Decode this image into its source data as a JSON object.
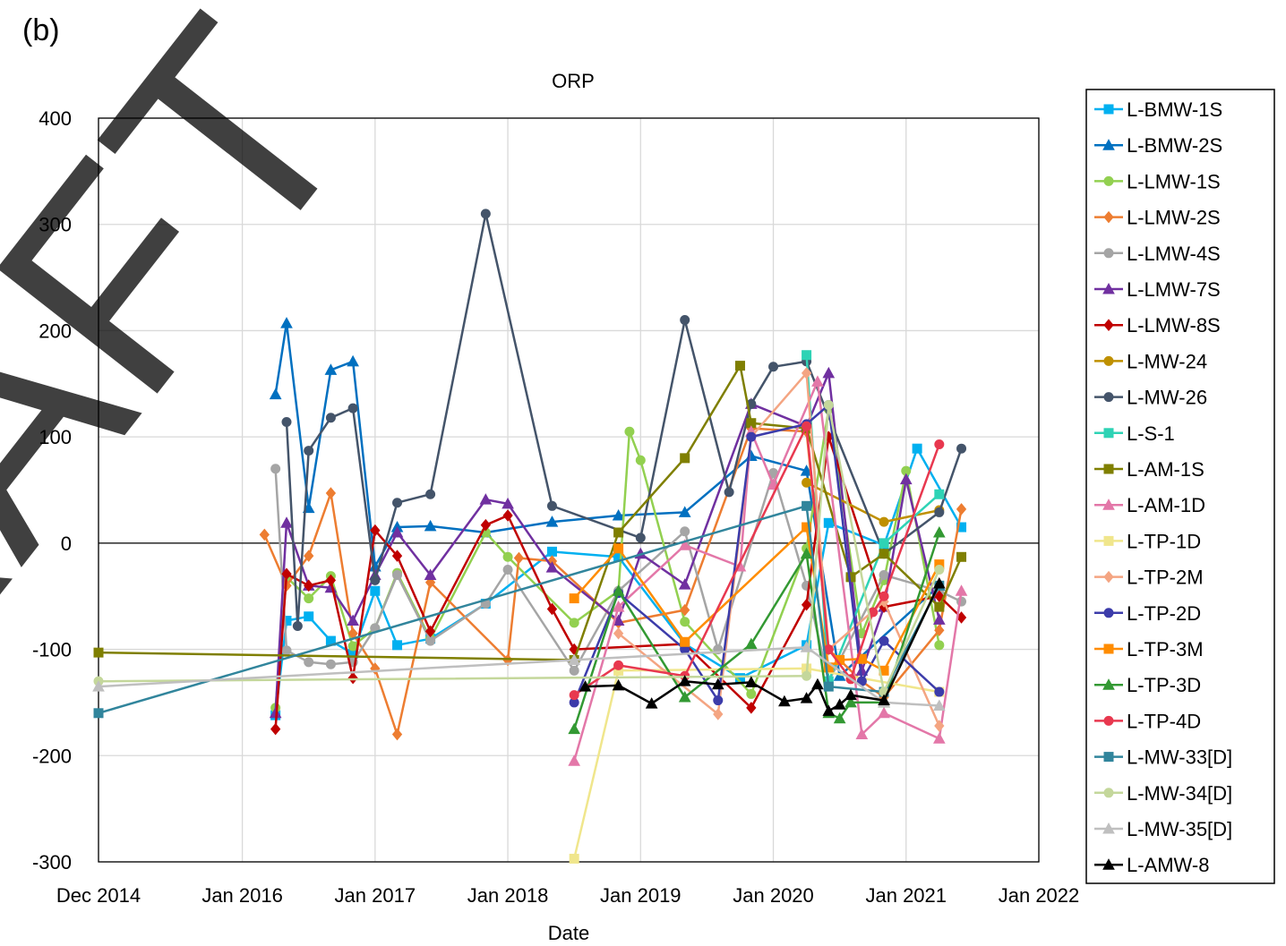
{
  "chart_data": {
    "type": "line",
    "panel_label": "(b)",
    "title": "ORP",
    "x_label": "Date",
    "watermark": "DRAFT",
    "xlim": [
      "2014-12",
      "2022-01"
    ],
    "xticks": [
      {
        "value": "2014-12",
        "label": "Dec 2014"
      },
      {
        "value": "2016-01",
        "label": "Jan 2016"
      },
      {
        "value": "2017-01",
        "label": "Jan 2017"
      },
      {
        "value": "2018-01",
        "label": "Jan 2018"
      },
      {
        "value": "2019-01",
        "label": "Jan 2019"
      },
      {
        "value": "2020-01",
        "label": "Jan 2020"
      },
      {
        "value": "2021-01",
        "label": "Jan 2021"
      },
      {
        "value": "2022-01",
        "label": "Jan 2022"
      }
    ],
    "ylim": [
      -300,
      400
    ],
    "yticks": [
      400,
      300,
      200,
      100,
      0,
      -100,
      -200,
      -300
    ],
    "grid": true,
    "legend": "right",
    "series": [
      {
        "name": "L-BMW-1S",
        "color": "#00b0f0",
        "marker": "square",
        "x": [
          "2016-04",
          "2016-05",
          "2016-07",
          "2016-09",
          "2016-11",
          "2017-01",
          "2017-03",
          "2017-06",
          "2017-11",
          "2018-05",
          "2018-11",
          "2019-05",
          "2019-10",
          "2020-04",
          "2020-06",
          "2020-11",
          "2021-02",
          "2021-06"
        ],
        "values": [
          -162,
          -73,
          -69,
          -92,
          -104,
          -45,
          -96,
          -90,
          -57,
          -8,
          -13,
          -95,
          -127,
          -96,
          19,
          -2,
          89,
          15
        ]
      },
      {
        "name": "L-BMW-2S",
        "color": "#0070c0",
        "marker": "triangle",
        "x": [
          "2016-04",
          "2016-05",
          "2016-07",
          "2016-09",
          "2016-11",
          "2017-01",
          "2017-03",
          "2017-06",
          "2017-11",
          "2018-05",
          "2018-11",
          "2019-05",
          "2019-11",
          "2020-04",
          "2020-07",
          "2021-04"
        ],
        "values": [
          140,
          207,
          33,
          163,
          171,
          -22,
          15,
          16,
          10,
          20,
          26,
          29,
          82,
          68,
          -125,
          -40
        ]
      },
      {
        "name": "L-LMW-1S",
        "color": "#92d050",
        "marker": "circle",
        "x": [
          "2016-04",
          "2016-05",
          "2016-07",
          "2016-09",
          "2016-11",
          "2017-01",
          "2017-03",
          "2017-06",
          "2017-11",
          "2018-01",
          "2018-07",
          "2018-11",
          "2018-12",
          "2019-01",
          "2019-05",
          "2019-11",
          "2020-04",
          "2020-06",
          "2020-09",
          "2020-11",
          "2021-01",
          "2021-04"
        ],
        "values": [
          -155,
          -32,
          -52,
          -31,
          -97,
          -80,
          -28,
          -90,
          10,
          -13,
          -75,
          -45,
          105,
          78,
          -74,
          -142,
          -5,
          126,
          -85,
          -35,
          68,
          -96
        ]
      },
      {
        "name": "L-LMW-2S",
        "color": "#ed7d31",
        "marker": "diamond",
        "x": [
          "2016-03",
          "2016-05",
          "2016-07",
          "2016-09",
          "2016-11",
          "2017-01",
          "2017-03",
          "2017-06",
          "2018-01",
          "2018-02",
          "2018-05",
          "2018-11",
          "2019-05",
          "2019-11",
          "2020-04",
          "2020-06",
          "2020-09",
          "2020-11",
          "2021-04",
          "2021-06"
        ],
        "values": [
          8,
          -40,
          -12,
          47,
          -85,
          -118,
          -180,
          -37,
          -110,
          -14,
          -17,
          -75,
          -63,
          108,
          105,
          -100,
          -130,
          -145,
          -82,
          32
        ]
      },
      {
        "name": "L-LMW-4S",
        "color": "#a5a5a5",
        "marker": "circle",
        "x": [
          "2016-04",
          "2016-05",
          "2016-07",
          "2016-09",
          "2016-11",
          "2017-01",
          "2017-03",
          "2017-06",
          "2017-11",
          "2018-01",
          "2018-07",
          "2018-11",
          "2019-05",
          "2019-08",
          "2020-01",
          "2020-04",
          "2020-06",
          "2020-11",
          "2021-04",
          "2021-06"
        ],
        "values": [
          70,
          -101,
          -112,
          -114,
          -112,
          -80,
          -30,
          -92,
          -57,
          -25,
          -120,
          -45,
          11,
          -100,
          66,
          -40,
          -130,
          -30,
          -45,
          -55
        ]
      },
      {
        "name": "L-LMW-7S",
        "color": "#7030a0",
        "marker": "triangle",
        "x": [
          "2016-04",
          "2016-05",
          "2016-07",
          "2016-09",
          "2016-11",
          "2017-01",
          "2017-03",
          "2017-06",
          "2017-11",
          "2018-01",
          "2018-05",
          "2018-11",
          "2019-01",
          "2019-05",
          "2019-11",
          "2020-04",
          "2020-06",
          "2020-09",
          "2020-11",
          "2021-01",
          "2021-04"
        ],
        "values": [
          -160,
          19,
          -40,
          -42,
          -73,
          -30,
          10,
          -30,
          41,
          37,
          -23,
          -73,
          -10,
          -39,
          131,
          110,
          160,
          -120,
          -60,
          60,
          -72
        ]
      },
      {
        "name": "L-LMW-8S",
        "color": "#c00000",
        "marker": "diamond",
        "x": [
          "2016-04",
          "2016-05",
          "2016-07",
          "2016-09",
          "2016-11",
          "2017-01",
          "2017-03",
          "2017-06",
          "2017-11",
          "2018-01",
          "2018-05",
          "2018-07",
          "2019-05",
          "2019-11",
          "2020-04",
          "2020-06",
          "2020-11",
          "2021-04",
          "2021-06"
        ],
        "values": [
          -175,
          -29,
          -40,
          -35,
          -127,
          12,
          -12,
          -83,
          17,
          26,
          -62,
          -100,
          -95,
          -155,
          -58,
          100,
          -60,
          -50,
          -70
        ]
      },
      {
        "name": "L-MW-24",
        "color": "#bf9000",
        "marker": "circle",
        "x": [
          "2020-04",
          "2020-11",
          "2021-04"
        ],
        "values": [
          57,
          20,
          31
        ]
      },
      {
        "name": "L-MW-26",
        "color": "#44546a",
        "marker": "circle",
        "x": [
          "2016-05",
          "2016-06",
          "2016-07",
          "2016-09",
          "2016-11",
          "2017-01",
          "2017-03",
          "2017-06",
          "2017-11",
          "2018-05",
          "2019-01",
          "2019-05",
          "2019-09",
          "2019-11",
          "2020-01",
          "2020-04",
          "2020-11",
          "2021-04",
          "2021-06"
        ],
        "values": [
          114,
          -78,
          87,
          118,
          127,
          -35,
          38,
          46,
          310,
          35,
          5,
          210,
          48,
          131,
          166,
          171,
          -10,
          29,
          89
        ]
      },
      {
        "name": "L-S-1",
        "color": "#2ed3b5",
        "marker": "square",
        "x": [
          "2020-04",
          "2020-06",
          "2020-11",
          "2021-04"
        ],
        "values": [
          177,
          -130,
          0,
          46
        ]
      },
      {
        "name": "L-AM-1S",
        "color": "#7f7f00",
        "marker": "square",
        "x": [
          "2014-12",
          "2018-07",
          "2018-11",
          "2019-05",
          "2019-10",
          "2019-11",
          "2020-04",
          "2020-08",
          "2020-11",
          "2021-04",
          "2021-06"
        ],
        "values": [
          -103,
          -110,
          10,
          80,
          167,
          113,
          108,
          -32,
          -10,
          -60,
          -13
        ]
      },
      {
        "name": "L-AM-1D",
        "color": "#e377a8",
        "marker": "triangle",
        "x": [
          "2018-07",
          "2018-11",
          "2019-05",
          "2019-10",
          "2019-11",
          "2020-01",
          "2020-05",
          "2020-09",
          "2020-11",
          "2021-04",
          "2021-06"
        ],
        "values": [
          -205,
          -60,
          -2,
          -22,
          105,
          55,
          152,
          -180,
          -160,
          -184,
          -45
        ]
      },
      {
        "name": "L-TP-1D",
        "color": "#f0e68c",
        "marker": "square",
        "x": [
          "2018-07",
          "2018-11",
          "2020-04",
          "2021-04"
        ],
        "values": [
          -297,
          -120,
          -118,
          -140
        ]
      },
      {
        "name": "L-TP-2M",
        "color": "#f4a582",
        "marker": "diamond",
        "x": [
          "2018-11",
          "2019-08",
          "2019-11",
          "2020-04",
          "2020-06",
          "2020-11",
          "2021-04"
        ],
        "values": [
          -85,
          -161,
          100,
          160,
          -100,
          -55,
          -172
        ]
      },
      {
        "name": "L-TP-2D",
        "color": "#3c3caa",
        "marker": "circle",
        "x": [
          "2018-07",
          "2018-11",
          "2019-05",
          "2019-08",
          "2019-11",
          "2020-04",
          "2020-06",
          "2020-09",
          "2020-11",
          "2021-04"
        ],
        "values": [
          -150,
          -47,
          -100,
          -148,
          100,
          112,
          130,
          -130,
          -92,
          -140
        ]
      },
      {
        "name": "L-TP-3M",
        "color": "#ff8c00",
        "marker": "square",
        "x": [
          "2018-07",
          "2018-11",
          "2019-05",
          "2020-04",
          "2020-06",
          "2020-07",
          "2020-09",
          "2020-11",
          "2021-04"
        ],
        "values": [
          -52,
          -5,
          -93,
          15,
          -117,
          -110,
          -109,
          -120,
          -20
        ]
      },
      {
        "name": "L-TP-3D",
        "color": "#339933",
        "marker": "triangle",
        "x": [
          "2018-07",
          "2018-11",
          "2019-05",
          "2019-11",
          "2020-04",
          "2020-06",
          "2020-07",
          "2020-08",
          "2020-11",
          "2021-04"
        ],
        "values": [
          -175,
          -45,
          -145,
          -95,
          -10,
          -160,
          -165,
          -150,
          -150,
          10
        ]
      },
      {
        "name": "L-TP-4D",
        "color": "#e8384f",
        "marker": "circle",
        "x": [
          "2018-07",
          "2018-11",
          "2019-05",
          "2020-04",
          "2020-06",
          "2020-08",
          "2020-10",
          "2020-11",
          "2021-04"
        ],
        "values": [
          -143,
          -115,
          -125,
          110,
          -100,
          -128,
          -65,
          -50,
          93
        ]
      },
      {
        "name": "L-MW-33[D]",
        "color": "#31859c",
        "marker": "square",
        "x": [
          "2014-12",
          "2020-04",
          "2020-06",
          "2020-11",
          "2021-04"
        ],
        "values": [
          -160,
          35,
          -135,
          -140,
          -40
        ]
      },
      {
        "name": "L-MW-34[D]",
        "color": "#c4d79b",
        "marker": "circle",
        "x": [
          "2014-12",
          "2020-04",
          "2020-06",
          "2020-11",
          "2021-04"
        ],
        "values": [
          -130,
          -125,
          130,
          -140,
          -25
        ]
      },
      {
        "name": "L-MW-35[D]",
        "color": "#bfbfbf",
        "marker": "triangle",
        "x": [
          "2014-12",
          "2018-07",
          "2020-04",
          "2020-11",
          "2021-04"
        ],
        "values": [
          -135,
          -110,
          -98,
          -150,
          -153
        ]
      },
      {
        "name": "L-AMW-8",
        "color": "#000000",
        "marker": "triangle",
        "x": [
          "2018-08",
          "2018-11",
          "2019-02",
          "2019-05",
          "2019-08",
          "2019-11",
          "2020-02",
          "2020-04",
          "2020-05",
          "2020-06",
          "2020-07",
          "2020-08",
          "2020-11",
          "2021-04"
        ],
        "values": [
          -135,
          -134,
          -151,
          -130,
          -133,
          -131,
          -149,
          -146,
          -133,
          -158,
          -152,
          -143,
          -148,
          -38
        ]
      }
    ]
  }
}
